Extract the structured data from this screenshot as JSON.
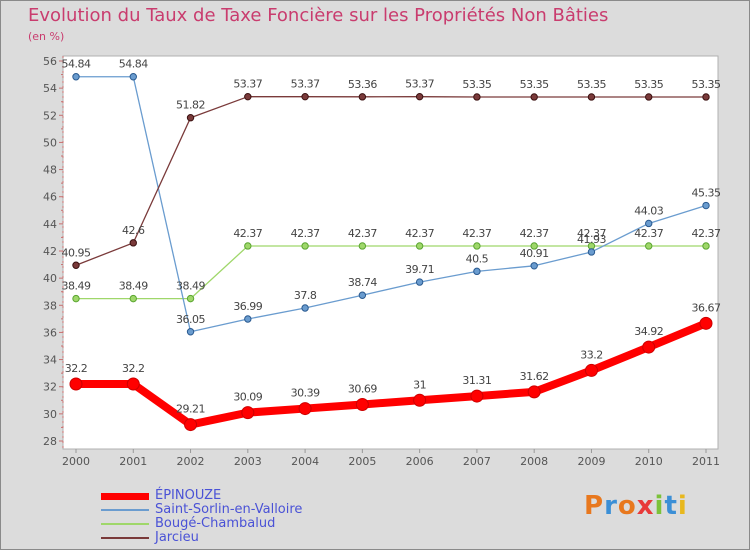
{
  "title": "Evolution du Taux de Taxe Foncière sur les Propriétés Non Bâties",
  "unit": "(en %)",
  "logo": {
    "text": "Proxiti",
    "colors": [
      "#e8781e",
      "#3b8fd6",
      "#e8781e",
      "#e83a3a",
      "#7cc23a",
      "#3b8fd6",
      "#e8b81e"
    ]
  },
  "chart_data": {
    "type": "line",
    "x": [
      "2000",
      "2001",
      "2002",
      "2003",
      "2004",
      "2005",
      "2006",
      "2007",
      "2008",
      "2009",
      "2010",
      "2011"
    ],
    "ylim": [
      28,
      56
    ],
    "yticks": [
      28,
      30,
      32,
      34,
      36,
      38,
      40,
      42,
      44,
      46,
      48,
      50,
      52,
      54,
      56
    ],
    "grid": false,
    "legend_position": "bottom-left",
    "series": [
      {
        "name": "ÉPINOUZE",
        "color": "#ff0000",
        "labels": [
          "32.2",
          "32.2",
          "29.21",
          "30.09",
          "30.39",
          "30.69",
          "31",
          "31.31",
          "31.62",
          "33.2",
          "34.92",
          "36.67"
        ],
        "values": [
          32.2,
          32.2,
          29.21,
          30.09,
          30.39,
          30.69,
          31,
          31.31,
          31.62,
          33.2,
          34.92,
          36.67
        ]
      },
      {
        "name": "Saint-Sorlin-en-Valloire",
        "color": "#6a9ccf",
        "labels": [
          "54.84",
          "54.84",
          "36.05",
          "36.99",
          "37.8",
          "38.74",
          "39.71",
          "40.5",
          "40.91",
          "41.93",
          "44.03",
          "45.35"
        ],
        "values": [
          54.84,
          54.84,
          36.05,
          36.99,
          37.8,
          38.74,
          39.71,
          40.5,
          40.91,
          41.93,
          44.03,
          45.35
        ]
      },
      {
        "name": "Bougé-Chambalud",
        "color": "#9fd76a",
        "labels": [
          "38.49",
          "38.49",
          "38.49",
          "42.37",
          "42.37",
          "42.37",
          "42.37",
          "42.37",
          "42.37",
          "42.37",
          "42.37",
          "42.37"
        ],
        "values": [
          38.49,
          38.49,
          38.49,
          42.37,
          42.37,
          42.37,
          42.37,
          42.37,
          42.37,
          42.37,
          42.37,
          42.37
        ]
      },
      {
        "name": "Jarcieu",
        "color": "#7a3a3a",
        "labels": [
          "40.95",
          "42.6",
          "51.82",
          "53.37",
          "53.37",
          "53.36",
          "53.37",
          "53.35",
          "53.35",
          "53.35",
          "53.35",
          "53.35"
        ],
        "values": [
          40.95,
          42.6,
          51.82,
          53.37,
          53.37,
          53.36,
          53.37,
          53.35,
          53.35,
          53.35,
          53.35,
          53.35
        ]
      }
    ]
  }
}
